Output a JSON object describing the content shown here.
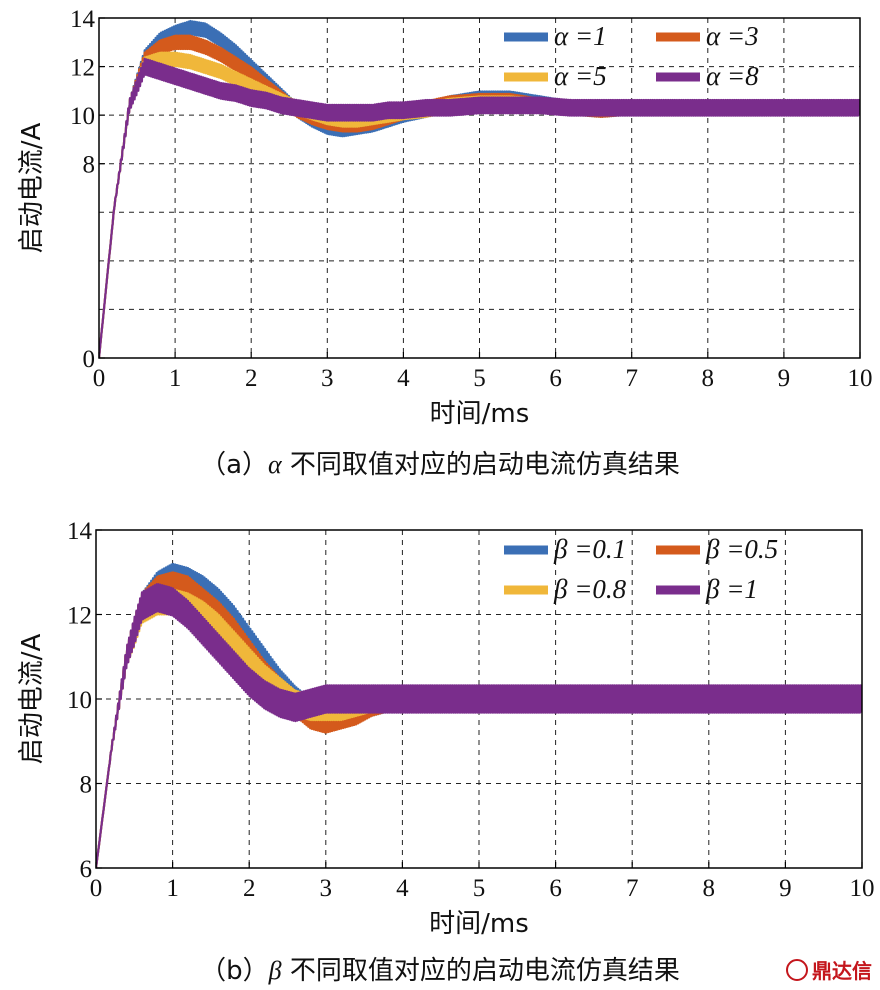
{
  "chart_data": [
    {
      "type": "line",
      "panel": "a",
      "caption_prefix": "（a）",
      "caption_greek": "α",
      "caption_text": " 不同取值对应的启动电流仿真结果",
      "xlabel": "时间/ms",
      "ylabel": "启动电流/A",
      "xlim": [
        0,
        10
      ],
      "ylim": [
        0,
        14
      ],
      "xticks": [
        0,
        1,
        2,
        3,
        4,
        5,
        6,
        7,
        8,
        9,
        10
      ],
      "yticks": [
        0,
        8,
        10,
        12,
        14
      ],
      "ytick_positions": [
        0,
        8,
        10,
        12,
        14
      ],
      "grid": true,
      "legend_position": "top-right",
      "legend_symbol": "α",
      "series": [
        {
          "name": "α =1",
          "color": "#3b6fb5",
          "ripple": 0.55,
          "points": [
            [
              0,
              0
            ],
            [
              0.2,
              6.2
            ],
            [
              0.4,
              10.4
            ],
            [
              0.6,
              12.4
            ],
            [
              0.8,
              13.1
            ],
            [
              1.0,
              13.4
            ],
            [
              1.2,
              13.6
            ],
            [
              1.4,
              13.5
            ],
            [
              1.6,
              13.1
            ],
            [
              1.8,
              12.6
            ],
            [
              2.0,
              12.0
            ],
            [
              2.2,
              11.4
            ],
            [
              2.4,
              10.8
            ],
            [
              2.6,
              10.2
            ],
            [
              2.8,
              9.8
            ],
            [
              3.0,
              9.5
            ],
            [
              3.2,
              9.4
            ],
            [
              3.4,
              9.5
            ],
            [
              3.6,
              9.6
            ],
            [
              3.8,
              9.8
            ],
            [
              4.0,
              10.0
            ],
            [
              4.3,
              10.2
            ],
            [
              4.6,
              10.5
            ],
            [
              5.0,
              10.7
            ],
            [
              5.4,
              10.7
            ],
            [
              5.8,
              10.5
            ],
            [
              6.2,
              10.3
            ],
            [
              6.6,
              10.2
            ],
            [
              7.0,
              10.3
            ],
            [
              8.0,
              10.3
            ],
            [
              9.0,
              10.3
            ],
            [
              10.0,
              10.3
            ]
          ]
        },
        {
          "name": "α =3",
          "color": "#d45a1c",
          "ripple": 0.55,
          "points": [
            [
              0,
              0
            ],
            [
              0.2,
              6.2
            ],
            [
              0.4,
              10.4
            ],
            [
              0.6,
              12.3
            ],
            [
              0.8,
              12.8
            ],
            [
              1.0,
              13.0
            ],
            [
              1.2,
              13.0
            ],
            [
              1.4,
              12.8
            ],
            [
              1.6,
              12.5
            ],
            [
              1.8,
              12.1
            ],
            [
              2.0,
              11.7
            ],
            [
              2.2,
              11.2
            ],
            [
              2.4,
              10.7
            ],
            [
              2.6,
              10.2
            ],
            [
              2.8,
              9.9
            ],
            [
              3.0,
              9.7
            ],
            [
              3.2,
              9.6
            ],
            [
              3.4,
              9.6
            ],
            [
              3.6,
              9.7
            ],
            [
              3.8,
              9.9
            ],
            [
              4.0,
              10.1
            ],
            [
              4.3,
              10.3
            ],
            [
              4.6,
              10.5
            ],
            [
              5.0,
              10.6
            ],
            [
              5.4,
              10.6
            ],
            [
              5.8,
              10.4
            ],
            [
              6.2,
              10.3
            ],
            [
              6.6,
              10.2
            ],
            [
              7.0,
              10.3
            ],
            [
              8.0,
              10.3
            ],
            [
              9.0,
              10.3
            ],
            [
              10.0,
              10.3
            ]
          ]
        },
        {
          "name": "α =5",
          "color": "#f0b73a",
          "ripple": 0.55,
          "points": [
            [
              0,
              0
            ],
            [
              0.2,
              6.2
            ],
            [
              0.4,
              10.4
            ],
            [
              0.6,
              12.1
            ],
            [
              0.8,
              12.3
            ],
            [
              1.0,
              12.3
            ],
            [
              1.2,
              12.2
            ],
            [
              1.4,
              12.0
            ],
            [
              1.6,
              11.8
            ],
            [
              1.8,
              11.5
            ],
            [
              2.0,
              11.2
            ],
            [
              2.2,
              10.9
            ],
            [
              2.4,
              10.6
            ],
            [
              2.6,
              10.3
            ],
            [
              2.8,
              10.1
            ],
            [
              3.0,
              9.9
            ],
            [
              3.2,
              9.8
            ],
            [
              3.4,
              9.8
            ],
            [
              3.6,
              9.9
            ],
            [
              3.8,
              10.0
            ],
            [
              4.0,
              10.1
            ],
            [
              4.3,
              10.2
            ],
            [
              4.6,
              10.4
            ],
            [
              5.0,
              10.5
            ],
            [
              5.4,
              10.5
            ],
            [
              5.8,
              10.4
            ],
            [
              6.2,
              10.3
            ],
            [
              6.6,
              10.3
            ],
            [
              7.0,
              10.3
            ],
            [
              8.0,
              10.3
            ],
            [
              9.0,
              10.3
            ],
            [
              10.0,
              10.3
            ]
          ]
        },
        {
          "name": "α =8",
          "color": "#7a2d8c",
          "ripple": 0.65,
          "points": [
            [
              0,
              0
            ],
            [
              0.2,
              6.2
            ],
            [
              0.4,
              10.4
            ],
            [
              0.6,
              12.0
            ],
            [
              0.8,
              11.8
            ],
            [
              1.0,
              11.6
            ],
            [
              1.2,
              11.4
            ],
            [
              1.4,
              11.2
            ],
            [
              1.6,
              11.0
            ],
            [
              1.8,
              10.9
            ],
            [
              2.0,
              10.7
            ],
            [
              2.2,
              10.6
            ],
            [
              2.4,
              10.4
            ],
            [
              2.6,
              10.3
            ],
            [
              2.8,
              10.2
            ],
            [
              3.0,
              10.1
            ],
            [
              3.2,
              10.1
            ],
            [
              3.4,
              10.1
            ],
            [
              3.6,
              10.1
            ],
            [
              3.8,
              10.2
            ],
            [
              4.0,
              10.2
            ],
            [
              4.3,
              10.3
            ],
            [
              4.6,
              10.3
            ],
            [
              5.0,
              10.4
            ],
            [
              5.4,
              10.4
            ],
            [
              5.8,
              10.4
            ],
            [
              6.2,
              10.3
            ],
            [
              6.6,
              10.3
            ],
            [
              7.0,
              10.3
            ],
            [
              8.0,
              10.3
            ],
            [
              9.0,
              10.3
            ],
            [
              10.0,
              10.3
            ]
          ]
        }
      ]
    },
    {
      "type": "line",
      "panel": "b",
      "caption_prefix": "（b）",
      "caption_greek": "β",
      "caption_text": " 不同取值对应的启动电流仿真结果",
      "xlabel": "时间/ms",
      "ylabel": "启动电流/A",
      "xlim": [
        0,
        10
      ],
      "ylim": [
        6,
        14
      ],
      "xticks": [
        0,
        1,
        2,
        3,
        4,
        5,
        6,
        7,
        8,
        9,
        10
      ],
      "yticks": [
        6,
        8,
        10,
        12,
        14
      ],
      "ytick_positions": [
        6,
        8,
        10,
        12,
        14
      ],
      "grid": true,
      "legend_position": "top-right",
      "legend_symbol": "β",
      "series": [
        {
          "name": "β =0.1",
          "color": "#3b6fb5",
          "ripple": 0.6,
          "points": [
            [
              0,
              6.0
            ],
            [
              0.2,
              8.8
            ],
            [
              0.4,
              11.0
            ],
            [
              0.6,
              12.2
            ],
            [
              0.8,
              12.7
            ],
            [
              1.0,
              12.9
            ],
            [
              1.2,
              12.8
            ],
            [
              1.4,
              12.6
            ],
            [
              1.6,
              12.3
            ],
            [
              1.8,
              11.9
            ],
            [
              2.0,
              11.4
            ],
            [
              2.2,
              10.9
            ],
            [
              2.4,
              10.4
            ],
            [
              2.6,
              10.0
            ],
            [
              2.8,
              9.7
            ],
            [
              3.0,
              9.6
            ],
            [
              3.2,
              9.7
            ],
            [
              3.4,
              9.8
            ],
            [
              3.6,
              9.9
            ],
            [
              3.8,
              10.0
            ],
            [
              4.0,
              10.0
            ],
            [
              5.0,
              10.0
            ],
            [
              6.0,
              10.0
            ],
            [
              7.0,
              10.0
            ],
            [
              8.0,
              10.0
            ],
            [
              9.0,
              10.0
            ],
            [
              10.0,
              10.0
            ]
          ]
        },
        {
          "name": "β =0.5",
          "color": "#d45a1c",
          "ripple": 0.6,
          "points": [
            [
              0,
              6.0
            ],
            [
              0.2,
              8.8
            ],
            [
              0.4,
              11.0
            ],
            [
              0.6,
              12.2
            ],
            [
              0.8,
              12.6
            ],
            [
              1.0,
              12.7
            ],
            [
              1.2,
              12.6
            ],
            [
              1.4,
              12.3
            ],
            [
              1.6,
              12.0
            ],
            [
              1.8,
              11.6
            ],
            [
              2.0,
              11.1
            ],
            [
              2.2,
              10.6
            ],
            [
              2.4,
              10.2
            ],
            [
              2.6,
              9.9
            ],
            [
              2.8,
              9.6
            ],
            [
              3.0,
              9.5
            ],
            [
              3.2,
              9.6
            ],
            [
              3.4,
              9.7
            ],
            [
              3.6,
              9.9
            ],
            [
              3.8,
              10.0
            ],
            [
              4.0,
              10.0
            ],
            [
              5.0,
              10.0
            ],
            [
              6.0,
              10.0
            ],
            [
              7.0,
              10.0
            ],
            [
              8.0,
              10.0
            ],
            [
              9.0,
              10.0
            ],
            [
              10.0,
              10.0
            ]
          ]
        },
        {
          "name": "β =0.8",
          "color": "#f0b73a",
          "ripple": 0.6,
          "points": [
            [
              0,
              6.0
            ],
            [
              0.2,
              8.8
            ],
            [
              0.4,
              11.0
            ],
            [
              0.6,
              12.1
            ],
            [
              0.8,
              12.3
            ],
            [
              1.0,
              12.3
            ],
            [
              1.2,
              12.2
            ],
            [
              1.4,
              12.0
            ],
            [
              1.6,
              11.7
            ],
            [
              1.8,
              11.3
            ],
            [
              2.0,
              10.9
            ],
            [
              2.2,
              10.5
            ],
            [
              2.4,
              10.2
            ],
            [
              2.6,
              9.9
            ],
            [
              2.8,
              9.8
            ],
            [
              3.0,
              9.8
            ],
            [
              3.2,
              9.8
            ],
            [
              3.4,
              9.9
            ],
            [
              3.6,
              10.0
            ],
            [
              3.8,
              10.0
            ],
            [
              4.0,
              10.0
            ],
            [
              5.0,
              10.0
            ],
            [
              6.0,
              10.0
            ],
            [
              7.0,
              10.0
            ],
            [
              8.0,
              10.0
            ],
            [
              9.0,
              10.0
            ],
            [
              10.0,
              10.0
            ]
          ]
        },
        {
          "name": "β =1",
          "color": "#7a2d8c",
          "ripple": 0.65,
          "points": [
            [
              0,
              6.0
            ],
            [
              0.2,
              8.8
            ],
            [
              0.4,
              11.0
            ],
            [
              0.6,
              12.2
            ],
            [
              0.8,
              12.4
            ],
            [
              1.0,
              12.3
            ],
            [
              1.2,
              12.0
            ],
            [
              1.4,
              11.6
            ],
            [
              1.6,
              11.2
            ],
            [
              1.8,
              10.8
            ],
            [
              2.0,
              10.4
            ],
            [
              2.2,
              10.1
            ],
            [
              2.4,
              9.9
            ],
            [
              2.6,
              9.8
            ],
            [
              2.8,
              9.9
            ],
            [
              3.0,
              10.0
            ],
            [
              3.2,
              10.0
            ],
            [
              3.4,
              10.0
            ],
            [
              3.6,
              10.0
            ],
            [
              4.0,
              10.0
            ],
            [
              5.0,
              10.0
            ],
            [
              6.0,
              10.0
            ],
            [
              7.0,
              10.0
            ],
            [
              8.0,
              10.0
            ],
            [
              9.0,
              10.0
            ],
            [
              10.0,
              10.0
            ]
          ]
        }
      ]
    }
  ],
  "watermark": {
    "text": "鼎达信"
  }
}
